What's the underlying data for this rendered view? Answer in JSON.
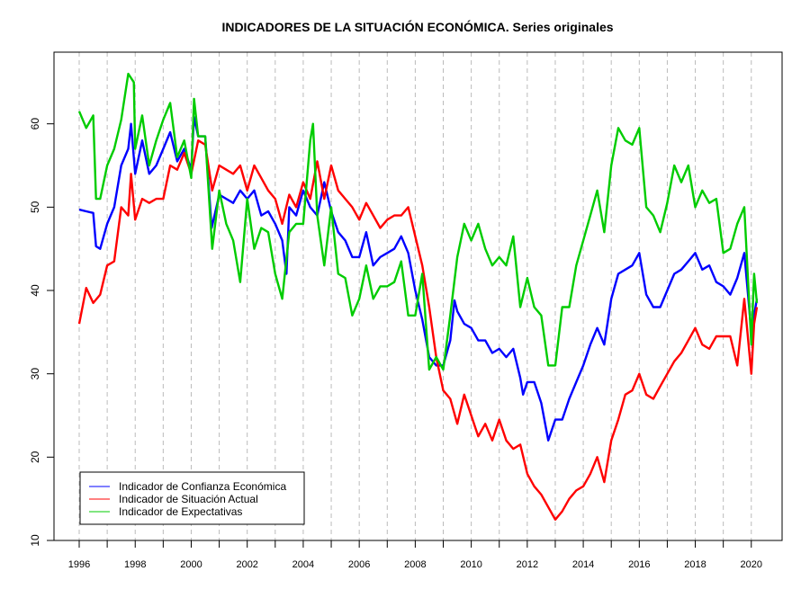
{
  "chart_data": {
    "type": "line",
    "title": "INDICADORES DE LA SITUACIÓN ECONÓMICA. Series originales",
    "xlabel": "",
    "ylabel": "",
    "xlim": [
      1995.1,
      2021.1
    ],
    "ylim": [
      10,
      68.6
    ],
    "x_ticks": [
      "1996",
      "1998",
      "2000",
      "2002",
      "2004",
      "2006",
      "2008",
      "2010",
      "2012",
      "2014",
      "2016",
      "2018",
      "2020"
    ],
    "y_ticks": [
      "10",
      "20",
      "30",
      "40",
      "50",
      "60"
    ],
    "grid": "vertical dashed lines at each year",
    "legend_position": "bottom-left",
    "series": [
      {
        "name": "Indicador de Confianza Económica",
        "color": "#0000ff",
        "x": [
          1996,
          1996.25,
          1996.5,
          1996.6,
          1996.75,
          1997,
          1997.25,
          1997.5,
          1997.75,
          1997.85,
          1998,
          1998.25,
          1998.5,
          1998.75,
          1999,
          1999.25,
          1999.5,
          1999.75,
          2000,
          2000.1,
          2000.25,
          2000.5,
          2000.73,
          2001,
          2001.25,
          2001.5,
          2001.75,
          2002,
          2002.25,
          2002.5,
          2002.75,
          2003,
          2003.25,
          2003.4,
          2003.5,
          2003.75,
          2004,
          2004.25,
          2004.5,
          2004.75,
          2005,
          2005.25,
          2005.5,
          2005.75,
          2006,
          2006.25,
          2006.5,
          2006.75,
          2007,
          2007.25,
          2007.5,
          2007.75,
          2008,
          2008.25,
          2008.5,
          2008.75,
          2009,
          2009.25,
          2009.4,
          2009.5,
          2009.75,
          2010,
          2010.25,
          2010.5,
          2010.75,
          2011,
          2011.25,
          2011.5,
          2011.75,
          2011.85,
          2012,
          2012.25,
          2012.5,
          2012.75,
          2013,
          2013.25,
          2013.5,
          2013.75,
          2014,
          2014.25,
          2014.5,
          2014.75,
          2015,
          2015.25,
          2015.5,
          2015.75,
          2016,
          2016.25,
          2016.5,
          2016.75,
          2017,
          2017.25,
          2017.5,
          2017.75,
          2018,
          2018.25,
          2018.5,
          2018.75,
          2019,
          2019.25,
          2019.5,
          2019.75,
          2020,
          2020.1,
          2020.2
        ],
        "values": [
          49.7,
          49.5,
          49.3,
          45.3,
          45,
          48,
          50,
          55,
          57,
          60,
          54,
          58,
          54,
          55,
          57,
          59,
          55.5,
          57,
          54.5,
          60.8,
          58.5,
          58.5,
          47.5,
          51.5,
          51,
          50.5,
          52,
          51,
          52,
          49,
          49.5,
          48,
          46,
          42,
          50,
          49,
          52,
          50,
          49,
          53,
          49.5,
          47,
          46,
          44,
          44,
          47,
          43,
          44,
          44.5,
          45,
          46.5,
          44.5,
          40,
          36.5,
          32,
          31,
          31,
          34,
          38.8,
          37.5,
          36,
          35.5,
          34,
          34,
          32.5,
          33,
          32,
          33,
          29.5,
          27.5,
          29,
          29,
          26.5,
          22,
          24.5,
          24.5,
          27,
          29,
          31,
          33.5,
          35.5,
          33.5,
          39,
          42,
          42.5,
          43,
          44.5,
          39.5,
          38,
          38,
          40,
          42,
          42.5,
          43.5,
          44.5,
          42.5,
          43,
          41,
          40.5,
          39.5,
          41.5,
          44.5,
          35,
          37,
          39
        ]
      },
      {
        "name": "Indicador de Situación Actual",
        "color": "#ff0000",
        "x": [
          1996,
          1996.25,
          1996.5,
          1996.75,
          1997,
          1997.25,
          1997.5,
          1997.75,
          1997.85,
          1998,
          1998.25,
          1998.5,
          1998.75,
          1999,
          1999.25,
          1999.5,
          1999.75,
          2000,
          2000.25,
          2000.5,
          2000.75,
          2001,
          2001.25,
          2001.5,
          2001.75,
          2002,
          2002.25,
          2002.5,
          2002.75,
          2003,
          2003.25,
          2003.5,
          2003.75,
          2004,
          2004.25,
          2004.5,
          2004.75,
          2005,
          2005.25,
          2005.5,
          2005.75,
          2006,
          2006.25,
          2006.5,
          2006.75,
          2007,
          2007.25,
          2007.5,
          2007.75,
          2008,
          2008.25,
          2008.5,
          2008.75,
          2009,
          2009.25,
          2009.5,
          2009.75,
          2010,
          2010.25,
          2010.5,
          2010.75,
          2011,
          2011.25,
          2011.5,
          2011.75,
          2012,
          2012.25,
          2012.5,
          2012.75,
          2013,
          2013.25,
          2013.5,
          2013.75,
          2014,
          2014.25,
          2014.5,
          2014.75,
          2015,
          2015.25,
          2015.5,
          2015.75,
          2016,
          2016.25,
          2016.5,
          2016.75,
          2017,
          2017.25,
          2017.5,
          2017.75,
          2018,
          2018.25,
          2018.5,
          2018.75,
          2019,
          2019.25,
          2019.5,
          2019.75,
          2020,
          2020.1,
          2020.2
        ],
        "values": [
          36,
          40.3,
          38.5,
          39.5,
          43,
          43.5,
          50,
          49,
          54,
          48.5,
          51,
          50.5,
          51,
          51,
          55,
          54.5,
          56.5,
          54,
          58,
          57.5,
          52,
          55,
          54.5,
          54,
          55,
          52,
          55,
          53.5,
          52,
          51,
          48,
          51.5,
          50,
          53,
          51,
          55.5,
          51,
          55,
          52,
          51,
          50,
          48.5,
          50.5,
          49,
          47.5,
          48.5,
          49,
          49,
          50,
          46.5,
          43,
          38,
          32,
          28,
          27,
          24,
          27.5,
          25,
          22.5,
          24,
          22,
          24.5,
          22,
          21,
          21.5,
          18,
          16.5,
          15.5,
          14,
          12.5,
          13.5,
          15,
          16,
          16.5,
          18,
          20,
          17,
          22,
          24.5,
          27.5,
          28,
          30,
          27.5,
          27,
          28.5,
          30,
          31.5,
          32.5,
          34,
          35.5,
          33.5,
          33,
          34.5,
          34.5,
          34.5,
          31,
          39,
          30,
          36,
          38
        ]
      },
      {
        "name": "Indicador de Expectativas",
        "color": "#00cc00",
        "x": [
          1996,
          1996.25,
          1996.5,
          1996.6,
          1996.75,
          1997,
          1997.25,
          1997.5,
          1997.75,
          1997.95,
          1998,
          1998.25,
          1998.5,
          1998.75,
          1999,
          1999.25,
          1999.5,
          1999.75,
          2000,
          2000.1,
          2000.25,
          2000.5,
          2000.75,
          2001,
          2001.25,
          2001.5,
          2001.75,
          2002,
          2002.25,
          2002.5,
          2002.75,
          2003,
          2003.25,
          2003.5,
          2003.75,
          2004,
          2004.25,
          2004.35,
          2004.5,
          2004.75,
          2005,
          2005.25,
          2005.5,
          2005.75,
          2006,
          2006.25,
          2006.5,
          2006.75,
          2007,
          2007.25,
          2007.5,
          2007.75,
          2008,
          2008.25,
          2008.5,
          2008.75,
          2009,
          2009.25,
          2009.5,
          2009.75,
          2010,
          2010.25,
          2010.5,
          2010.75,
          2011,
          2011.25,
          2011.5,
          2011.75,
          2012,
          2012.25,
          2012.5,
          2012.75,
          2013,
          2013.25,
          2013.5,
          2013.75,
          2014,
          2014.25,
          2014.5,
          2014.75,
          2015,
          2015.25,
          2015.5,
          2015.75,
          2016,
          2016.25,
          2016.5,
          2016.75,
          2017,
          2017.25,
          2017.5,
          2017.75,
          2018,
          2018.25,
          2018.5,
          2018.75,
          2019,
          2019.25,
          2019.5,
          2019.75,
          2020,
          2020.1,
          2020.2
        ],
        "values": [
          61.5,
          59.5,
          61,
          51,
          51,
          55,
          57,
          60.5,
          66,
          65,
          57,
          61,
          55,
          58,
          60.5,
          62.5,
          56,
          58,
          53.5,
          63,
          58.5,
          58.5,
          45,
          52,
          48,
          46,
          41,
          51,
          45,
          47.5,
          47,
          42,
          39,
          47,
          48,
          48,
          58,
          60,
          49,
          43,
          50,
          42,
          41.5,
          37,
          39,
          43,
          39,
          40.5,
          40.5,
          41,
          43.5,
          37,
          37,
          42,
          30.5,
          32,
          30.5,
          37,
          44,
          48,
          46,
          48,
          45,
          43,
          44,
          43,
          46.5,
          38,
          41.5,
          38,
          37,
          31,
          31,
          38,
          38,
          43,
          46,
          49,
          52,
          47,
          55,
          59.5,
          58,
          57.5,
          59.5,
          50,
          49,
          47,
          50.5,
          55,
          53,
          55,
          50,
          52,
          50.5,
          51,
          44.5,
          45,
          48,
          50,
          33.5,
          42,
          38.5
        ]
      }
    ]
  }
}
